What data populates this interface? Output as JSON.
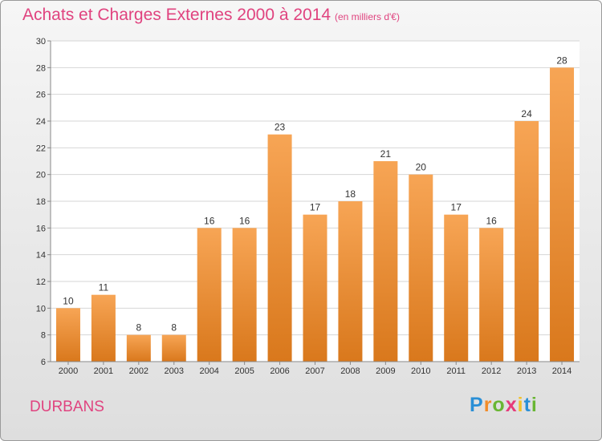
{
  "chart_data": {
    "type": "bar",
    "title": "Achats et Charges Externes 2000 à 2014",
    "subtitle": "(en milliers d'€)",
    "categories": [
      "2000",
      "2001",
      "2002",
      "2003",
      "2004",
      "2005",
      "2006",
      "2007",
      "2008",
      "2009",
      "2010",
      "2011",
      "2012",
      "2013",
      "2014"
    ],
    "values": [
      10,
      11,
      8,
      8,
      16,
      16,
      23,
      17,
      18,
      21,
      20,
      17,
      16,
      24,
      28
    ],
    "ylim": [
      6,
      30
    ],
    "yticks": [
      6,
      8,
      10,
      12,
      14,
      16,
      18,
      20,
      22,
      24,
      26,
      28,
      30
    ],
    "grid": true,
    "bar_color_top": "#f7a555",
    "bar_color_bottom": "#d9781c"
  },
  "commune": "DURBANS",
  "logo": {
    "letters": [
      "P",
      "r",
      "o",
      "x",
      "i",
      "t",
      "i"
    ],
    "colors": [
      "#2a8fd6",
      "#f28c28",
      "#69b633",
      "#e63b7a",
      "#f2c22b",
      "#2a8fd6",
      "#69b633"
    ]
  }
}
